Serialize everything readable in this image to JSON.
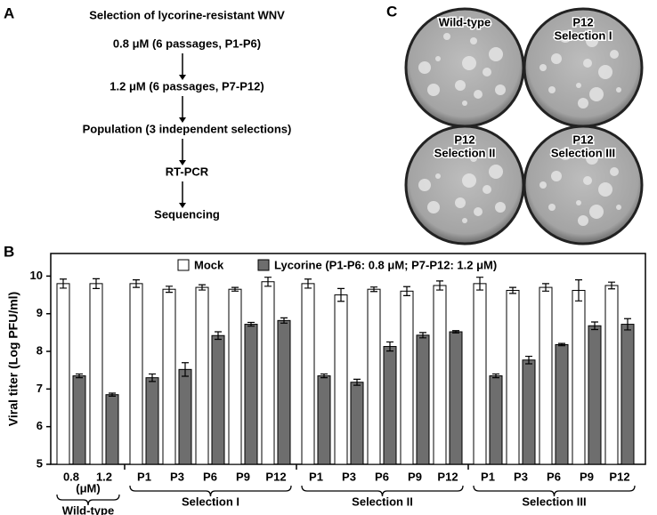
{
  "panel_a": {
    "label": "A",
    "title": "Selection of lycorine-resistant WNV",
    "steps": [
      "0.8 μM  (6 passages, P1-P6)",
      "1.2 μM  (6 passages, P7-P12)",
      "Population (3 independent selections)",
      "RT-PCR",
      "Sequencing"
    ]
  },
  "panel_c": {
    "label": "C",
    "plates": [
      [
        "Wild-type"
      ],
      [
        "P12",
        "Selection I"
      ],
      [
        "P12",
        "Selection II"
      ],
      [
        "P12",
        "Selection III"
      ]
    ]
  },
  "chart_data": {
    "type": "bar",
    "label": "B",
    "y_label": "Viral titer (Log PFU/ml)",
    "ylim": [
      5,
      10.6
    ],
    "yticks": [
      5,
      6,
      7,
      8,
      9,
      10
    ],
    "groups": [
      {
        "name": "Wild-type",
        "note": "(μM)",
        "categories": [
          "0.8",
          "1.2"
        ]
      },
      {
        "name": "Selection I",
        "categories": [
          "P1",
          "P3",
          "P6",
          "P9",
          "P12"
        ]
      },
      {
        "name": "Selection II",
        "categories": [
          "P1",
          "P3",
          "P6",
          "P9",
          "P12"
        ]
      },
      {
        "name": "Selection III",
        "categories": [
          "P1",
          "P3",
          "P6",
          "P9",
          "P12"
        ]
      }
    ],
    "series": [
      {
        "name": "Mock",
        "color": "#ffffff",
        "values": [
          9.8,
          9.8,
          9.8,
          9.65,
          9.7,
          9.65,
          9.85,
          9.8,
          9.5,
          9.65,
          9.6,
          9.75,
          9.8,
          9.62,
          9.7,
          9.62,
          9.75
        ],
        "errors": [
          0.12,
          0.13,
          0.1,
          0.08,
          0.07,
          0.05,
          0.12,
          0.12,
          0.17,
          0.06,
          0.12,
          0.12,
          0.17,
          0.08,
          0.1,
          0.28,
          0.09
        ]
      },
      {
        "name": "Lycorine (P1-P6: 0.8 μM; P7-P12: 1.2 μM)",
        "color": "#6e6e6e",
        "values": [
          7.35,
          6.85,
          7.3,
          7.52,
          8.42,
          8.72,
          8.82,
          7.35,
          7.18,
          8.13,
          8.43,
          8.52,
          7.35,
          7.77,
          8.18,
          8.68,
          8.72
        ],
        "errors": [
          0.05,
          0.04,
          0.1,
          0.18,
          0.1,
          0.05,
          0.07,
          0.05,
          0.08,
          0.12,
          0.07,
          0.03,
          0.05,
          0.1,
          0.03,
          0.1,
          0.15
        ]
      }
    ]
  }
}
